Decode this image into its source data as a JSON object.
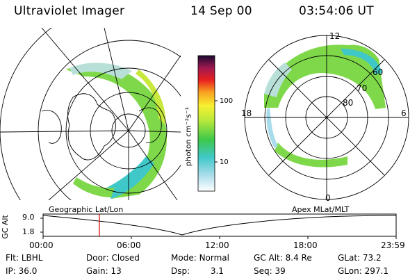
{
  "header": {
    "instrument": "Ultraviolet Imager",
    "date": "14 Sep 00",
    "time": "03:54:06 UT"
  },
  "colorbar": {
    "unit_label": "photon cm⁻²s⁻¹",
    "ticks": [
      "100",
      "10"
    ]
  },
  "apex_grid": {
    "mlt_labels": {
      "top": "12",
      "right": "6",
      "bottom": "0",
      "left": "18"
    },
    "lat_labels": [
      "60",
      "70",
      "80"
    ]
  },
  "panel_labels": {
    "left": "Geographic Lat/Lon",
    "right": "Apex  MLat/MLT"
  },
  "orbit": {
    "y_label": "GC Alt",
    "y_ticks": [
      "9.0",
      "1.8"
    ],
    "x_ticks": [
      "00:00",
      "06:00",
      "12:00",
      "18:00",
      "23:59"
    ]
  },
  "meta": {
    "row1": [
      {
        "key": "Flt:",
        "value": "LBHL"
      },
      {
        "key": "Door:",
        "value": "Closed"
      },
      {
        "key": "Mode:",
        "value": "Normal"
      },
      {
        "key": "GC Alt:",
        "value": "8.4 Re"
      },
      {
        "key": "GLat:",
        "value": "73.2"
      }
    ],
    "row2": [
      {
        "key": "IP:",
        "value": "36.0"
      },
      {
        "key": "Gain:",
        "value": "13"
      },
      {
        "key": "Dsp:",
        "value": "3.1"
      },
      {
        "key": "Seq:",
        "value": "39"
      },
      {
        "key": "GLon:",
        "value": "297.1"
      }
    ]
  },
  "colors": {
    "aurora_green": "#7fd84a",
    "aurora_yellow": "#c8e83c",
    "aurora_cyan": "#40c8c8",
    "marker_red": "#d40000"
  }
}
